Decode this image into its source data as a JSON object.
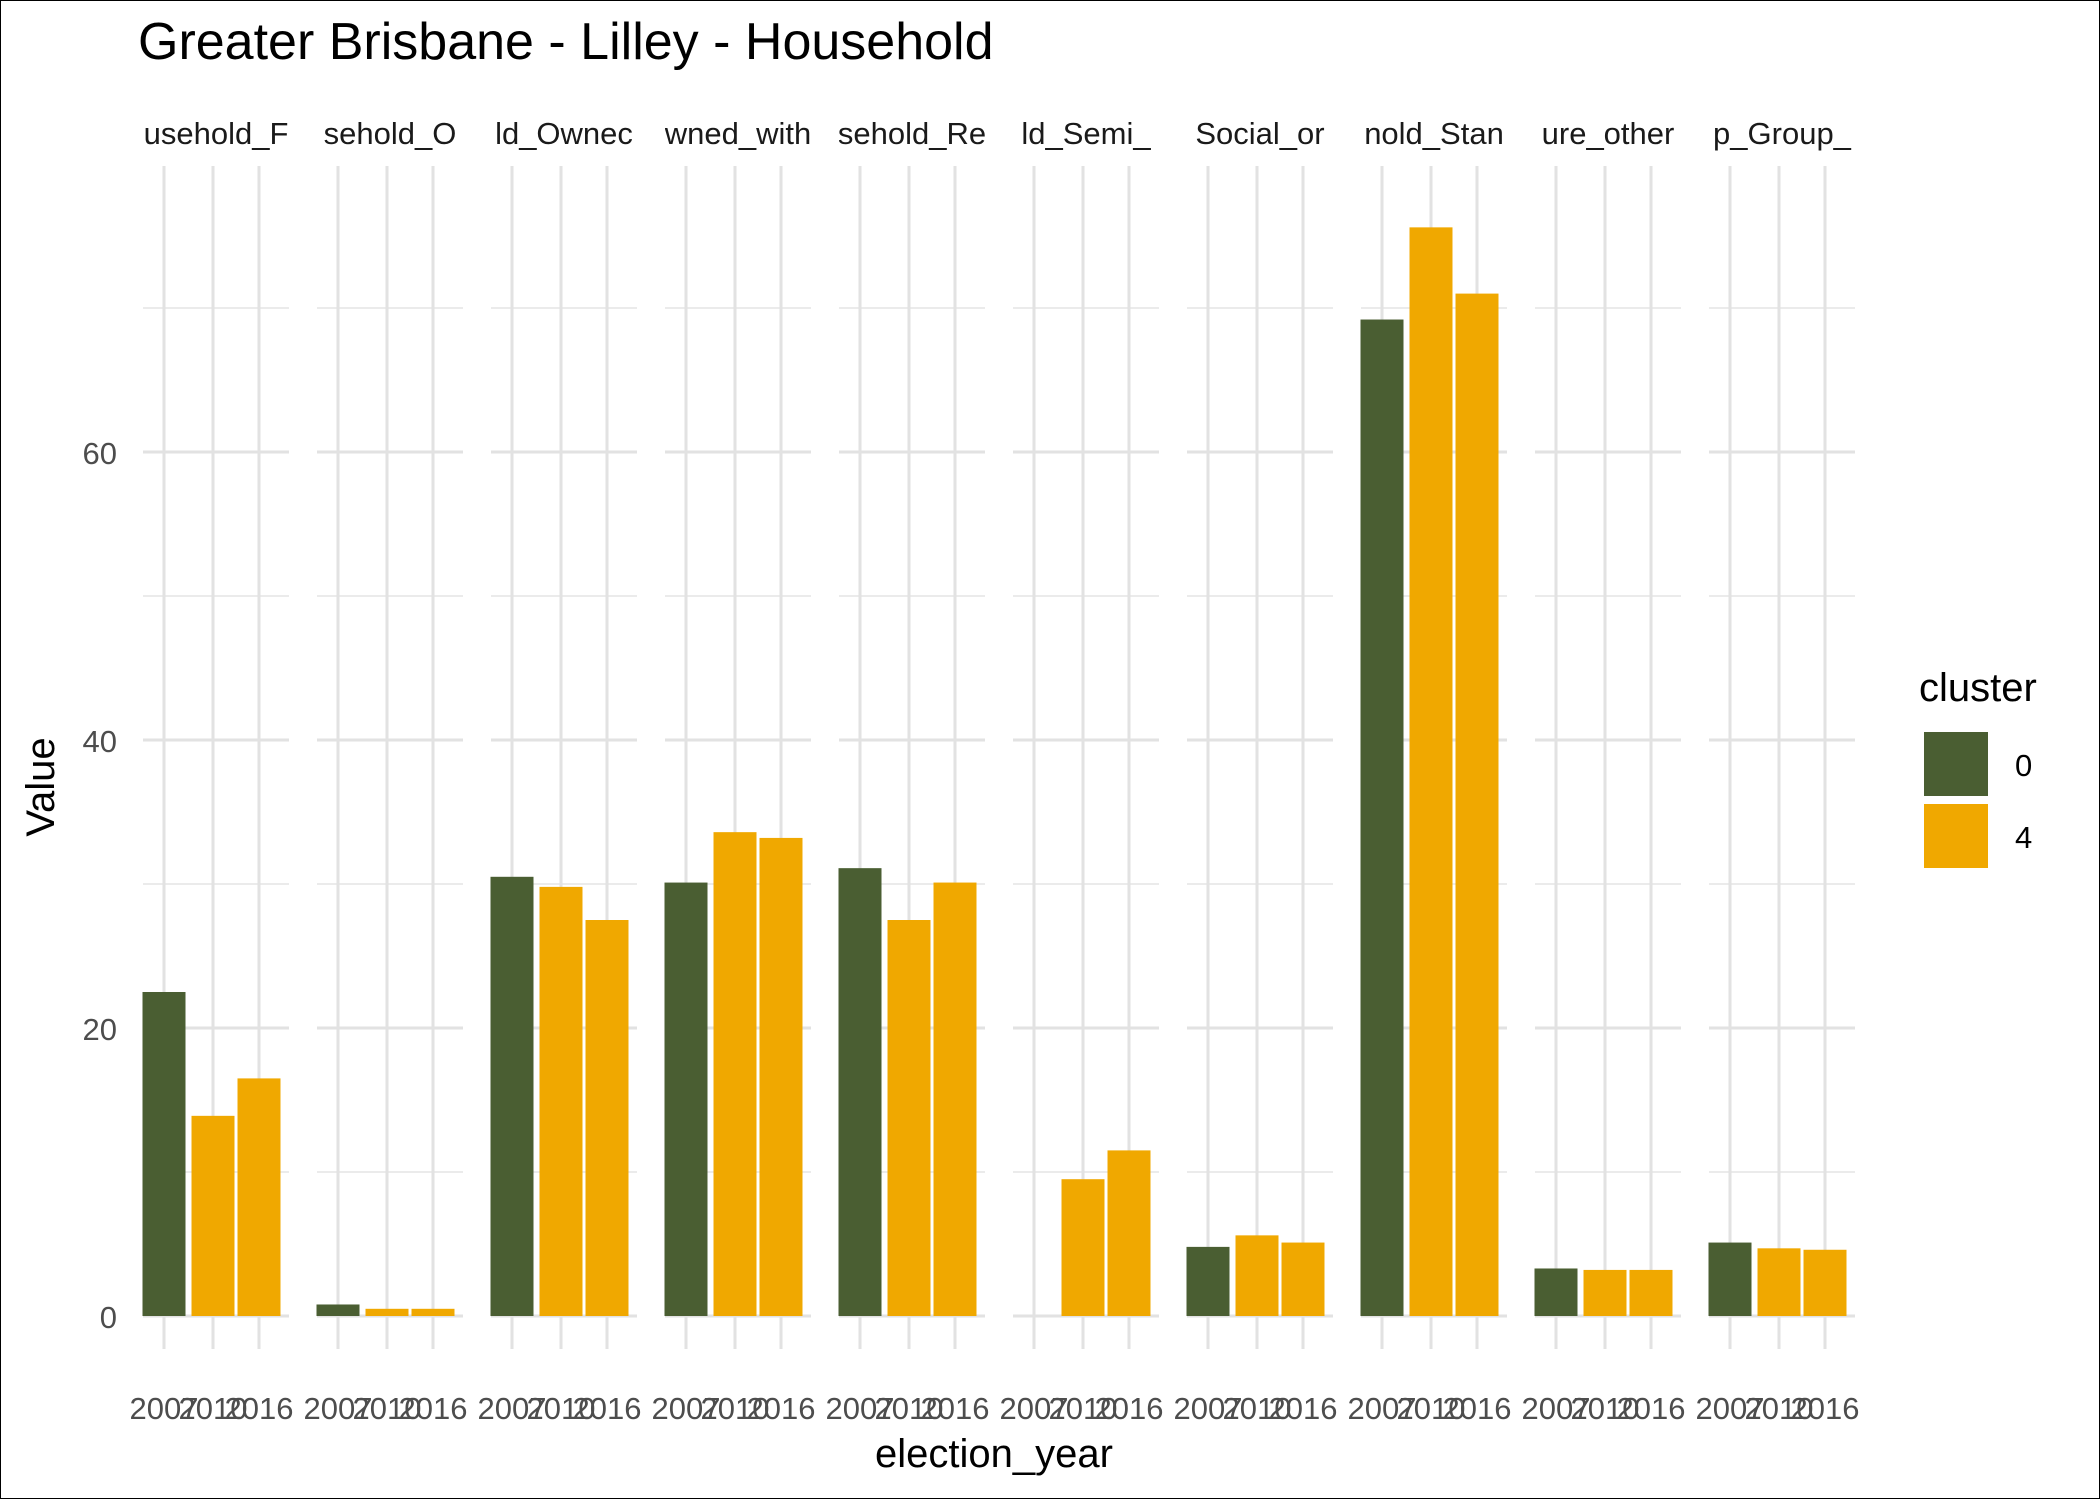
{
  "chart_data": {
    "type": "bar",
    "title": "Greater Brisbane - Lilley - Household",
    "xlabel": "election_year",
    "ylabel": "Value",
    "ylim": [
      0,
      75
    ],
    "yticks": [
      0,
      20,
      40,
      60
    ],
    "grid": true,
    "legend": {
      "title": "cluster",
      "position": "right",
      "entries": [
        {
          "label": "0",
          "color": "#4a5e32"
        },
        {
          "label": "4",
          "color": "#f0a800"
        }
      ]
    },
    "x_categories": [
      "2007",
      "2010",
      "2016"
    ],
    "facets": [
      {
        "label": "usehold_F",
        "values": [
          22.5,
          13.9,
          16.5
        ],
        "clusters": [
          "0",
          "4",
          "4"
        ]
      },
      {
        "label": "sehold_O",
        "values": [
          0.8,
          0.5,
          0.5
        ],
        "clusters": [
          "0",
          "4",
          "4"
        ]
      },
      {
        "label": "ld_Ownec",
        "values": [
          30.5,
          29.8,
          27.5
        ],
        "clusters": [
          "0",
          "4",
          "4"
        ]
      },
      {
        "label": "wned_with",
        "values": [
          30.1,
          33.6,
          33.2
        ],
        "clusters": [
          "0",
          "4",
          "4"
        ]
      },
      {
        "label": "sehold_Re",
        "values": [
          31.1,
          27.5,
          30.1
        ],
        "clusters": [
          "0",
          "4",
          "4"
        ]
      },
      {
        "label": "ld_Semi_",
        "values": [
          null,
          9.5,
          11.5
        ],
        "clusters": [
          "0",
          "4",
          "4"
        ]
      },
      {
        "label": "Social_or",
        "values": [
          4.8,
          5.6,
          5.1
        ],
        "clusters": [
          "0",
          "4",
          "4"
        ]
      },
      {
        "label": "nold_Stan",
        "values": [
          69.2,
          75.6,
          71.0
        ],
        "clusters": [
          "0",
          "4",
          "4"
        ]
      },
      {
        "label": "ure_other",
        "values": [
          3.3,
          3.2,
          3.2
        ],
        "clusters": [
          "0",
          "4",
          "4"
        ]
      },
      {
        "label": "p_Group_",
        "values": [
          5.1,
          4.7,
          4.6
        ],
        "clusters": [
          "0",
          "4",
          "4"
        ]
      }
    ]
  }
}
